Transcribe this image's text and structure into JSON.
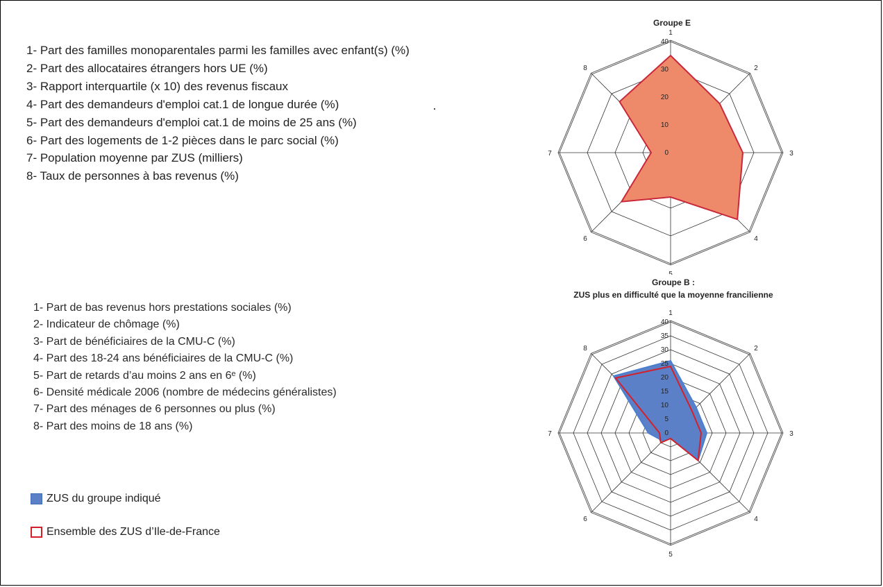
{
  "group_e": {
    "title": "Groupe E",
    "indicators": [
      "1- Part des familles monoparentales parmi les familles avec enfant(s) (%)",
      "2- Part des allocataires étrangers hors UE (%)",
      "3- Rapport interquartile (x 10) des revenus fiscaux",
      "4- Part des demandeurs d'emploi cat.1 de longue durée (%)",
      "5- Part des demandeurs d'emploi cat.1 de moins de 25 ans (%)",
      "6- Part des logements de 1-2 pièces dans le parc social (%)",
      "7- Population moyenne par ZUS (milliers)",
      "8- Taux de personnes à bas revenus (%)"
    ]
  },
  "group_b": {
    "title_line1": "Groupe B :",
    "title_line2": "ZUS plus en difficulté que la moyenne francilienne",
    "indicators": [
      "1- Part de bas revenus hors prestations sociales (%)",
      "2- Indicateur de chômage (%)",
      "3- Part de bénéficiaires de la CMU-C (%)",
      "4- Part des 18-24 ans bénéficiaires de la CMU-C (%)",
      "5- Part de retards d’au moins 2 ans en 6ᵉ (%)",
      "6- Densité médicale 2006 (nombre de médecins généralistes)",
      "7- Part des ménages de 6 personnes ou plus (%)",
      "8- Part des moins de 18 ans (%)"
    ]
  },
  "legend": {
    "items": [
      {
        "label": "ZUS du groupe indiqué",
        "kind": "filled",
        "color": "#5b80c8",
        "border": "#3f6bb5"
      },
      {
        "label": "Ensemble des ZUS d’Ile-de-France",
        "kind": "outline",
        "color": "#ffffff",
        "border": "#d4202a"
      }
    ]
  },
  "chart_data": [
    {
      "type": "radar",
      "title": "Groupe E",
      "axes": [
        "1",
        "2",
        "3",
        "4",
        "5",
        "6",
        "7",
        "8"
      ],
      "rmax": 40,
      "ticks": [
        0,
        10,
        20,
        30,
        40
      ],
      "fill_color": "#ee8a6a",
      "series": [
        {
          "values": [
            35,
            25,
            26,
            34,
            16,
            25,
            7,
            26
          ],
          "fill": "#ee8a6a",
          "stroke": "#c8283a"
        }
      ]
    },
    {
      "type": "radar",
      "title": "Groupe B : ZUS plus en difficulté que la moyenne francilienne",
      "axes": [
        "1",
        "2",
        "3",
        "4",
        "5",
        "6",
        "7",
        "8"
      ],
      "rmax": 40,
      "ticks": [
        0,
        5,
        10,
        15,
        20,
        25,
        30,
        35,
        40
      ],
      "series": [
        {
          "name": "ZUS du groupe indiqué",
          "values": [
            26,
            13,
            13,
            14,
            2,
            4,
            8,
            29
          ],
          "fill": "#5b80c8",
          "stroke": "#4a7fd0"
        },
        {
          "name": "Ensemble des ZUS d’Ile-de-France",
          "values": [
            24,
            11,
            11,
            14,
            2,
            5,
            4,
            28
          ],
          "fill": "none",
          "stroke": "#d4202a"
        }
      ]
    }
  ]
}
